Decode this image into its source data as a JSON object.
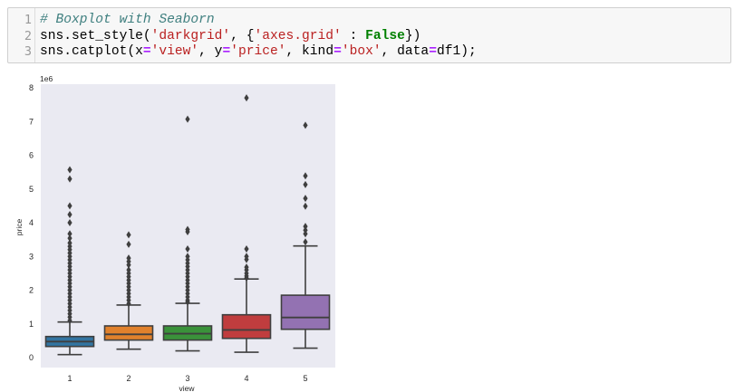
{
  "notebook": {
    "code_cell": {
      "line_numbers": [
        "1",
        "2",
        "3"
      ],
      "lines": [
        [
          {
            "t": "# Boxplot with Seaborn",
            "c": "comment"
          }
        ],
        [
          {
            "t": "sns.set_style(",
            "c": ""
          },
          {
            "t": "'darkgrid'",
            "c": "str"
          },
          {
            "t": ", {",
            "c": ""
          },
          {
            "t": "'axes.grid'",
            "c": "str"
          },
          {
            "t": " : ",
            "c": ""
          },
          {
            "t": "False",
            "c": "kw"
          },
          {
            "t": "})",
            "c": ""
          }
        ],
        [
          {
            "t": "sns.catplot(x",
            "c": ""
          },
          {
            "t": "=",
            "c": "op"
          },
          {
            "t": "'view'",
            "c": "str"
          },
          {
            "t": ", y",
            "c": ""
          },
          {
            "t": "=",
            "c": "op"
          },
          {
            "t": "'price'",
            "c": "str"
          },
          {
            "t": ", kind",
            "c": ""
          },
          {
            "t": "=",
            "c": "op"
          },
          {
            "t": "'box'",
            "c": "str"
          },
          {
            "t": ", data",
            "c": ""
          },
          {
            "t": "=",
            "c": "op"
          },
          {
            "t": "df1);",
            "c": ""
          }
        ]
      ]
    }
  },
  "chart_data": {
    "type": "box",
    "title": "",
    "xlabel": "view",
    "ylabel": "price",
    "y_offset_label": "1e6",
    "ylim": [
      -0.3,
      8.1
    ],
    "yticks": [
      0,
      1,
      2,
      3,
      4,
      5,
      6,
      7,
      8
    ],
    "grid": false,
    "background": "#eaeaf2",
    "categories": [
      "1",
      "2",
      "3",
      "4",
      "5"
    ],
    "colors": [
      "#3274a1",
      "#e1812c",
      "#3a923a",
      "#c03d3e",
      "#9372b2"
    ],
    "boxes": [
      {
        "category": "1",
        "whisker_low": 0.09,
        "q1": 0.33,
        "median": 0.475,
        "q3": 0.625,
        "whisker_high": 1.055,
        "outliers": [
          5.57,
          5.3,
          4.5,
          4.24,
          4.0,
          3.67,
          3.54,
          3.4,
          3.3,
          3.2,
          3.1,
          3.0,
          2.9,
          2.8,
          2.7,
          2.6,
          2.5,
          2.4,
          2.3,
          2.2,
          2.1,
          2.0,
          1.9,
          1.8,
          1.7,
          1.6,
          1.5,
          1.4,
          1.3,
          1.2,
          1.1
        ]
      },
      {
        "category": "2",
        "whisker_low": 0.25,
        "q1": 0.52,
        "median": 0.69,
        "q3": 0.94,
        "whisker_high": 1.56,
        "outliers": [
          3.64,
          3.36,
          2.95,
          2.85,
          2.75,
          2.6,
          2.5,
          2.4,
          2.3,
          2.2,
          2.1,
          2.0,
          1.9,
          1.8,
          1.7,
          1.6
        ]
      },
      {
        "category": "3",
        "whisker_low": 0.2,
        "q1": 0.52,
        "median": 0.71,
        "q3": 0.94,
        "whisker_high": 1.61,
        "outliers": [
          7.07,
          3.8,
          3.73,
          3.22,
          3.0,
          2.9,
          2.8,
          2.7,
          2.6,
          2.5,
          2.4,
          2.3,
          2.2,
          2.1,
          2.0,
          1.9,
          1.8,
          1.7,
          1.65
        ]
      },
      {
        "category": "4",
        "whisker_low": 0.16,
        "q1": 0.57,
        "median": 0.82,
        "q3": 1.27,
        "whisker_high": 2.33,
        "outliers": [
          7.7,
          3.22,
          3.0,
          2.91,
          2.68,
          2.6,
          2.5,
          2.42,
          2.36
        ]
      },
      {
        "category": "5",
        "whisker_low": 0.28,
        "q1": 0.84,
        "median": 1.19,
        "q3": 1.85,
        "whisker_high": 3.31,
        "outliers": [
          6.89,
          5.39,
          5.13,
          4.72,
          4.49,
          3.89,
          3.78,
          3.67,
          3.43
        ]
      }
    ]
  }
}
